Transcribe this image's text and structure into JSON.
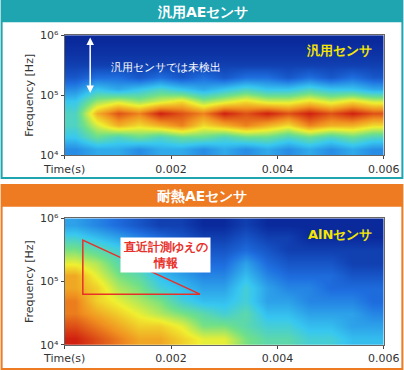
{
  "chart_data": [
    {
      "type": "heatmap",
      "title": "汎用AEセンサ",
      "x_label": "Time(s)",
      "y_label": "Frequency [Hz]",
      "log": "y",
      "xlim": [
        0,
        0.006
      ],
      "xticks": [
        {
          "value": 0,
          "label": "Time(s)"
        },
        0.002,
        0.004,
        0.006
      ],
      "ylim": [
        10000,
        1000000
      ],
      "yticks": [
        {
          "value": 10000,
          "label": "10⁴"
        },
        {
          "value": 100000,
          "label": "10⁵"
        },
        {
          "value": 1000000,
          "label": "10⁶"
        }
      ],
      "x_bins": [
        0,
        0.0004,
        0.0008,
        0.0012,
        0.0016,
        0.002,
        0.0024,
        0.0028,
        0.0032,
        0.0036,
        0.004,
        0.0044,
        0.0048,
        0.0052,
        0.0056,
        0.006
      ],
      "y_bins": [
        10000,
        15849,
        25119,
        39811,
        63096,
        100000,
        158489,
        251189,
        398107,
        630957,
        1000000
      ],
      "cells": [
        [
          0.3,
          0.35,
          0.35,
          0.3,
          0.35,
          0.35,
          0.3,
          0.35,
          0.3,
          0.35,
          0.3,
          0.35,
          0.3,
          0.35,
          0.3
        ],
        [
          0.4,
          0.5,
          0.45,
          0.5,
          0.45,
          0.5,
          0.5,
          0.45,
          0.5,
          0.5,
          0.45,
          0.5,
          0.45,
          0.5,
          0.45
        ],
        [
          0.45,
          0.6,
          0.7,
          0.65,
          0.7,
          0.75,
          0.65,
          0.7,
          0.75,
          0.7,
          0.65,
          0.75,
          0.7,
          0.7,
          0.65
        ],
        [
          0.45,
          0.7,
          0.8,
          0.75,
          0.85,
          0.8,
          0.75,
          0.85,
          0.8,
          0.85,
          0.8,
          0.85,
          0.8,
          0.85,
          0.8
        ],
        [
          0.4,
          0.55,
          0.6,
          0.55,
          0.6,
          0.65,
          0.55,
          0.6,
          0.65,
          0.6,
          0.6,
          0.65,
          0.6,
          0.65,
          0.6
        ],
        [
          0.3,
          0.4,
          0.35,
          0.4,
          0.45,
          0.4,
          0.35,
          0.4,
          0.45,
          0.4,
          0.4,
          0.45,
          0.4,
          0.4,
          0.35
        ],
        [
          0.2,
          0.25,
          0.25,
          0.2,
          0.25,
          0.2,
          0.25,
          0.2,
          0.25,
          0.25,
          0.2,
          0.25,
          0.2,
          0.25,
          0.2
        ],
        [
          0.15,
          0.15,
          0.15,
          0.15,
          0.15,
          0.15,
          0.15,
          0.15,
          0.15,
          0.15,
          0.15,
          0.15,
          0.15,
          0.15,
          0.15
        ],
        [
          0.12,
          0.12,
          0.12,
          0.12,
          0.12,
          0.12,
          0.12,
          0.12,
          0.12,
          0.12,
          0.12,
          0.12,
          0.12,
          0.12,
          0.12
        ],
        [
          0.1,
          0.1,
          0.1,
          0.1,
          0.1,
          0.1,
          0.1,
          0.1,
          0.1,
          0.1,
          0.1,
          0.1,
          0.1,
          0.1,
          0.1
        ]
      ],
      "annotations": [
        "汎用センサ",
        "汎用センサでは未検出"
      ]
    },
    {
      "type": "heatmap",
      "title": "耐熱AEセンサ",
      "x_label": "Time(s)",
      "y_label": "Frequency [Hz]",
      "log": "y",
      "xlim": [
        0,
        0.006
      ],
      "xticks": [
        {
          "value": 0,
          "label": "Time(s)"
        },
        0.002,
        0.004,
        0.006
      ],
      "ylim": [
        10000,
        1000000
      ],
      "yticks": [
        {
          "value": 10000,
          "label": "10⁴"
        },
        {
          "value": 100000,
          "label": "10⁵"
        },
        {
          "value": 1000000,
          "label": "10⁶"
        }
      ],
      "x_bins": [
        0,
        0.0004,
        0.0008,
        0.0012,
        0.0016,
        0.002,
        0.0024,
        0.0028,
        0.0032,
        0.0036,
        0.004,
        0.0044,
        0.0048,
        0.0052,
        0.0056,
        0.006
      ],
      "y_bins": [
        10000,
        15849,
        25119,
        39811,
        63096,
        100000,
        158489,
        251189,
        398107,
        630957,
        1000000
      ],
      "cells": [
        [
          0.95,
          0.9,
          0.85,
          0.8,
          0.8,
          0.75,
          0.7,
          0.7,
          0.6,
          0.55,
          0.55,
          0.5,
          0.5,
          0.45,
          0.45
        ],
        [
          0.9,
          0.85,
          0.8,
          0.75,
          0.75,
          0.7,
          0.6,
          0.6,
          0.55,
          0.5,
          0.5,
          0.45,
          0.45,
          0.4,
          0.4
        ],
        [
          0.85,
          0.8,
          0.75,
          0.7,
          0.65,
          0.6,
          0.55,
          0.5,
          0.55,
          0.45,
          0.45,
          0.4,
          0.4,
          0.4,
          0.35
        ],
        [
          0.85,
          0.75,
          0.7,
          0.65,
          0.6,
          0.5,
          0.45,
          0.45,
          0.5,
          0.4,
          0.4,
          0.35,
          0.35,
          0.35,
          0.3
        ],
        [
          0.8,
          0.75,
          0.65,
          0.6,
          0.5,
          0.45,
          0.4,
          0.4,
          0.5,
          0.4,
          0.35,
          0.35,
          0.3,
          0.3,
          0.3
        ],
        [
          0.8,
          0.7,
          0.6,
          0.55,
          0.45,
          0.4,
          0.35,
          0.35,
          0.45,
          0.35,
          0.3,
          0.3,
          0.3,
          0.25,
          0.25
        ],
        [
          0.7,
          0.65,
          0.55,
          0.5,
          0.4,
          0.35,
          0.3,
          0.3,
          0.4,
          0.3,
          0.25,
          0.25,
          0.25,
          0.2,
          0.2
        ],
        [
          0.6,
          0.55,
          0.5,
          0.4,
          0.35,
          0.3,
          0.25,
          0.25,
          0.3,
          0.25,
          0.2,
          0.2,
          0.2,
          0.2,
          0.2
        ],
        [
          0.5,
          0.45,
          0.4,
          0.35,
          0.3,
          0.25,
          0.2,
          0.2,
          0.25,
          0.2,
          0.2,
          0.15,
          0.15,
          0.15,
          0.15
        ],
        [
          0.4,
          0.35,
          0.3,
          0.25,
          0.2,
          0.2,
          0.15,
          0.15,
          0.2,
          0.15,
          0.15,
          0.15,
          0.15,
          0.15,
          0.15
        ]
      ],
      "annotations": [
        "AlNセンサ",
        "直近計測ゆえの\n情報"
      ]
    }
  ]
}
